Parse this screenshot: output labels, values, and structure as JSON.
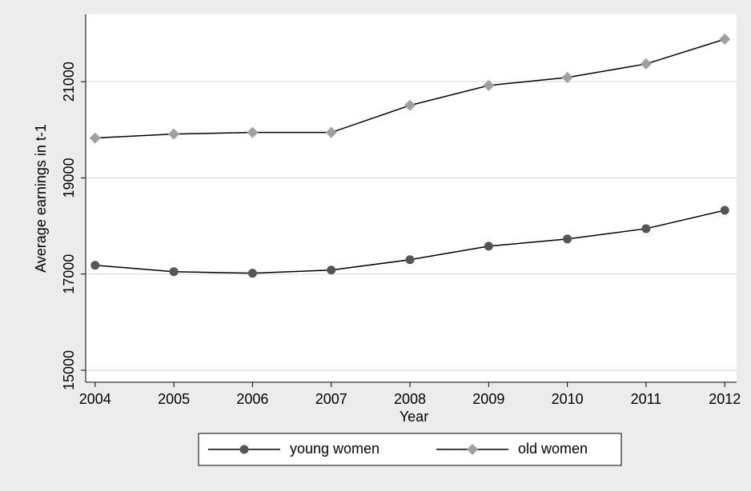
{
  "chart_data": {
    "type": "line",
    "x_label": "Year",
    "y_label": "Average earnings in t-1",
    "x": [
      2004,
      2005,
      2006,
      2007,
      2008,
      2009,
      2010,
      2011,
      2012
    ],
    "series": [
      {
        "name": "young women",
        "color": "#555555",
        "marker": "circle",
        "values": [
          17182,
          17050,
          17017,
          17083,
          17298,
          17580,
          17729,
          17944,
          18326
        ]
      },
      {
        "name": "old women",
        "color": "#a0a0a0",
        "marker": "diamond",
        "values": [
          19829,
          19911,
          19944,
          19944,
          20508,
          20922,
          21088,
          21370,
          21884
        ]
      }
    ],
    "xlim": [
      2003.88,
      2012.15
    ],
    "xticks": [
      2004,
      2005,
      2006,
      2007,
      2008,
      2009,
      2010,
      2011,
      2012
    ],
    "ylim": [
      14750,
      22400
    ],
    "yticks": [
      15000,
      17000,
      19000,
      21000
    ],
    "grid": true,
    "legend": "bottom"
  }
}
